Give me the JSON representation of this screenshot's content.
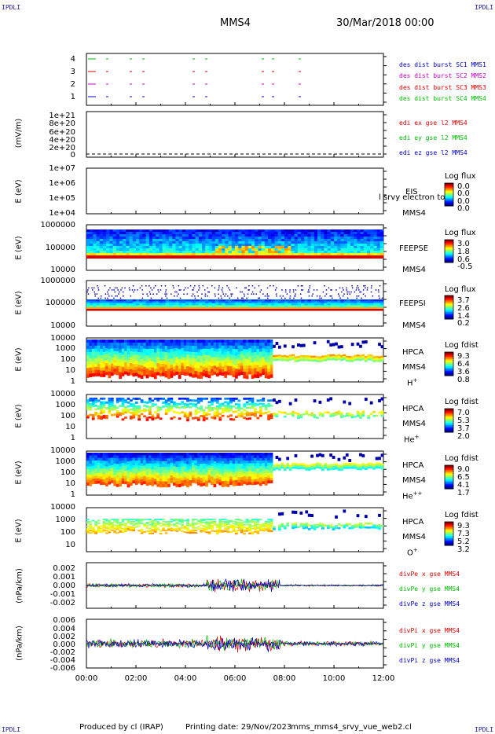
{
  "header": {
    "corner_label": "IPDLI",
    "spacecraft": "MMS4",
    "datetime": "30/Mar/2018 00:00"
  },
  "footer": {
    "produced_by": "Produced by cl (IRAP)",
    "printing_date": "Printing date: 29/Nov/2023",
    "file": "mms_mms4_srvy_vue_web2.cl"
  },
  "x_axis": {
    "ticks": [
      "00:00",
      "02:00",
      "04:00",
      "06:00",
      "08:00",
      "10:00",
      "12:00"
    ]
  },
  "colors": {
    "red": "#dd0000",
    "green": "#00bb00",
    "blue": "#0000cc",
    "magenta": "#cc00cc"
  },
  "chart_data": [
    {
      "type": "line",
      "panel": "burst-availability",
      "yticks": [
        "4",
        "3",
        "2",
        "1"
      ],
      "series": [
        {
          "name": "des dist burst SC1 MMS1",
          "color": "#0000cc"
        },
        {
          "name": "des dist burst SC2 MMS2",
          "color": "#cc00cc"
        },
        {
          "name": "des dist burst SC3 MMS3",
          "color": "#dd0000"
        },
        {
          "name": "des dist burst SC4 MMS4",
          "color": "#00bb00"
        }
      ]
    },
    {
      "type": "line",
      "panel": "edi-e-field",
      "ylabel": "(mV/m)",
      "yticks": [
        "1e+21",
        "8e+20",
        "6e+20",
        "4e+20",
        "2e+20",
        "0"
      ],
      "ylim": [
        0,
        1e+21
      ],
      "series": [
        {
          "name": "edi ex gse l2 MMS4",
          "color": "#dd0000"
        },
        {
          "name": "edi ey gse l2 MMS4",
          "color": "#00bb00"
        },
        {
          "name": "edi ez gse l2 MMS4",
          "color": "#0000cc"
        }
      ]
    },
    {
      "type": "heatmap",
      "panel": "eis",
      "ylabel": "E (eV)",
      "yticks": [
        "1e+07",
        "1e+06",
        "1e+05",
        "1e+04"
      ],
      "instrument": "EIS",
      "instrument_extra": "l srvy electron to",
      "spacecraft": "MMS4",
      "colorbar": {
        "title": "Log flux",
        "values": [
          "0.0",
          "0.0",
          "0.0",
          "0.0"
        ]
      }
    },
    {
      "type": "heatmap",
      "panel": "feeps-e",
      "ylabel": "E (eV)",
      "yticks": [
        "1000000",
        "100000",
        "10000"
      ],
      "instrument": "FEEPSE",
      "spacecraft": "MMS4",
      "colorbar": {
        "title": "Log flux",
        "values": [
          "3.0",
          "1.8",
          "0.6",
          "-0.5"
        ]
      }
    },
    {
      "type": "heatmap",
      "panel": "feeps-i",
      "ylabel": "E (eV)",
      "yticks": [
        "1000000",
        "100000",
        "10000"
      ],
      "instrument": "FEEPSI",
      "spacecraft": "MMS4",
      "colorbar": {
        "title": "Log flux",
        "values": [
          "3.7",
          "2.6",
          "1.4",
          "0.2"
        ]
      }
    },
    {
      "type": "heatmap",
      "panel": "hpca-h",
      "ylabel": "E (eV)",
      "yticks": [
        "10000",
        "1000",
        "100",
        "10",
        "1"
      ],
      "instrument": "HPCA",
      "spacecraft": "MMS4",
      "species": "H",
      "charge": "+",
      "colorbar": {
        "title": "Log fdist",
        "values": [
          "9.3",
          "6.4",
          "3.6",
          "0.8"
        ]
      }
    },
    {
      "type": "heatmap",
      "panel": "hpca-he1",
      "ylabel": "E (eV)",
      "yticks": [
        "10000",
        "1000",
        "100",
        "10",
        "1"
      ],
      "instrument": "HPCA",
      "spacecraft": "MMS4",
      "species": "He",
      "charge": "+",
      "colorbar": {
        "title": "Log fdist",
        "values": [
          "7.0",
          "5.3",
          "3.7",
          "2.0"
        ]
      }
    },
    {
      "type": "heatmap",
      "panel": "hpca-he2",
      "ylabel": "E (eV)",
      "yticks": [
        "10000",
        "1000",
        "100",
        "10",
        "1"
      ],
      "instrument": "HPCA",
      "spacecraft": "MMS4",
      "species": "He",
      "charge": "++",
      "colorbar": {
        "title": "Log fdist",
        "values": [
          "9.0",
          "6.5",
          "4.1",
          "1.7"
        ]
      }
    },
    {
      "type": "heatmap",
      "panel": "hpca-o",
      "ylabel": "E (eV)",
      "yticks": [
        "10000",
        "1000",
        "100",
        "10"
      ],
      "instrument": "HPCA",
      "spacecraft": "MMS4",
      "species": "O",
      "charge": "+",
      "colorbar": {
        "title": "Log fdist",
        "values": [
          "9.3",
          "7.3",
          "5.2",
          "3.2"
        ]
      }
    },
    {
      "type": "line",
      "panel": "divpe",
      "ylabel": "(nPa/km)",
      "yticks": [
        "0.002",
        "0.001",
        "0.000",
        "-0.001",
        "-0.002"
      ],
      "ylim": [
        -0.003,
        0.003
      ],
      "series": [
        {
          "name": "divPe x gse MMS4",
          "color": "#dd0000"
        },
        {
          "name": "divPe y gse MMS4",
          "color": "#00bb00"
        },
        {
          "name": "divPe z gse MMS4",
          "color": "#0000cc"
        }
      ]
    },
    {
      "type": "line",
      "panel": "divpi",
      "ylabel": "(nPa/km)",
      "yticks": [
        "0.006",
        "0.004",
        "0.002",
        "0.000",
        "-0.002",
        "-0.004",
        "-0.006"
      ],
      "ylim": [
        -0.007,
        0.007
      ],
      "series": [
        {
          "name": "divPi x gse MMS4",
          "color": "#dd0000"
        },
        {
          "name": "divPi y gse MMS4",
          "color": "#00bb00"
        },
        {
          "name": "divPi z gse MMS4",
          "color": "#0000cc"
        }
      ]
    }
  ]
}
